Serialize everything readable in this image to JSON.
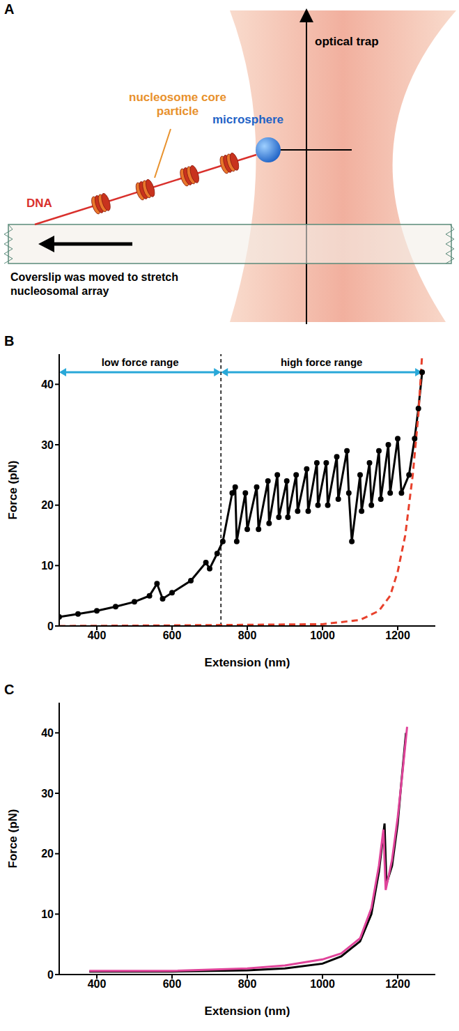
{
  "diagram": {
    "panel_label": "A",
    "labels": {
      "optical_trap": "optical trap",
      "nucleosome": "nucleosome core particle",
      "microsphere": "microsphere",
      "dna": "DNA",
      "coverslip": "Coverslip was moved to stretch nucleosomal array"
    }
  },
  "chart_data": [
    {
      "type": "line",
      "panel_label": "B",
      "xlabel": "Extension (nm)",
      "ylabel": "Force (pN)",
      "xlim": [
        300,
        1300
      ],
      "xticks": [
        400,
        600,
        800,
        1000,
        1200
      ],
      "ylim": [
        0,
        45
      ],
      "yticks": [
        0,
        10,
        20,
        30,
        40
      ],
      "grid": false,
      "series": [
        {
          "color": "#000000",
          "marker": "circle",
          "x": [
            300,
            350,
            400,
            450,
            500,
            540,
            560,
            575,
            600,
            650,
            690,
            700,
            720,
            735,
            760,
            768,
            772,
            795,
            800,
            825,
            830,
            855,
            858,
            880,
            884,
            905,
            908,
            930,
            934,
            958,
            962,
            985,
            988,
            1010,
            1014,
            1038,
            1042,
            1065,
            1070,
            1078,
            1100,
            1104,
            1125,
            1130,
            1150,
            1155,
            1175,
            1180,
            1200,
            1210,
            1230,
            1245,
            1255,
            1265
          ],
          "values": [
            1.5,
            2,
            2.5,
            3.2,
            4,
            5,
            7,
            4.5,
            5.5,
            7.5,
            10.5,
            9.5,
            12,
            14,
            22,
            23,
            14,
            22,
            16,
            23,
            16,
            24,
            17,
            25,
            18,
            24,
            18,
            25,
            19,
            26,
            19,
            27,
            20,
            27,
            20,
            28,
            21,
            29,
            22,
            14,
            25,
            19,
            27,
            20,
            29,
            21,
            30,
            22,
            31,
            22,
            25,
            31,
            36,
            42
          ]
        },
        {
          "color": "#e8412c",
          "line_style": "dashed",
          "x": [
            300,
            600,
            800,
            1000,
            1100,
            1150,
            1180,
            1200,
            1220,
            1240,
            1255,
            1265
          ],
          "values": [
            0,
            0.1,
            0.2,
            0.3,
            1,
            2.5,
            5,
            9,
            15,
            25,
            35,
            45
          ]
        }
      ],
      "annotations": [
        {
          "text": "low force range",
          "x": [
            300,
            730
          ],
          "y": 42,
          "color": "#29a8d8"
        },
        {
          "text": "high force range",
          "x": [
            730,
            1265
          ],
          "y": 42,
          "color": "#29a8d8"
        }
      ],
      "divider_x": 730
    },
    {
      "type": "line",
      "panel_label": "C",
      "xlabel": "Extension (nm)",
      "ylabel": "Force (pN)",
      "xlim": [
        300,
        1300
      ],
      "xticks": [
        400,
        600,
        800,
        1000,
        1200
      ],
      "ylim": [
        0,
        45
      ],
      "yticks": [
        0,
        10,
        20,
        30,
        40
      ],
      "grid": false,
      "series": [
        {
          "color": "#000000",
          "x": [
            380,
            600,
            800,
            900,
            1000,
            1050,
            1100,
            1130,
            1150,
            1165,
            1170,
            1185,
            1200,
            1210,
            1222
          ],
          "values": [
            0.5,
            0.5,
            0.7,
            1,
            1.8,
            3,
            5.5,
            10,
            17,
            25,
            15,
            18,
            25,
            32,
            40
          ]
        },
        {
          "color": "#e0449a",
          "x": [
            380,
            600,
            800,
            900,
            1000,
            1050,
            1100,
            1130,
            1150,
            1162,
            1168,
            1185,
            1200,
            1212,
            1225
          ],
          "values": [
            0.6,
            0.6,
            1,
            1.5,
            2.5,
            3.5,
            6,
            11,
            18,
            24,
            14,
            19,
            26,
            33,
            41
          ]
        }
      ]
    }
  ]
}
